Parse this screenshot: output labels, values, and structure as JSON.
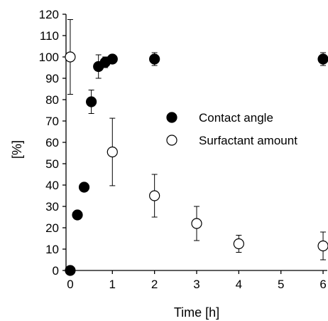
{
  "chart_data": {
    "type": "scatter",
    "title": "",
    "xlabel": "Time [h]",
    "ylabel": "[%]",
    "xlim": [
      -0.1,
      6.1
    ],
    "ylim": [
      0,
      120
    ],
    "xticks": [
      0,
      1,
      2,
      3,
      4,
      5,
      6
    ],
    "yticks": [
      0,
      10,
      20,
      30,
      40,
      50,
      60,
      70,
      80,
      90,
      100,
      110,
      120
    ],
    "grid": false,
    "legend": {
      "placement": "center-right"
    },
    "series": [
      {
        "name": "Contact angle",
        "marker": "filled-circle",
        "color": "#000000",
        "points": [
          {
            "x": 0,
            "y": 0,
            "err": 0
          },
          {
            "x": 0.17,
            "y": 26,
            "err": 0
          },
          {
            "x": 0.33,
            "y": 39,
            "err": 0
          },
          {
            "x": 0.5,
            "y": 79,
            "err": 5.5
          },
          {
            "x": 0.67,
            "y": 95.5,
            "err": 5.5
          },
          {
            "x": 0.83,
            "y": 97.5,
            "err": 2.5
          },
          {
            "x": 1,
            "y": 99,
            "err": 2
          },
          {
            "x": 2,
            "y": 99,
            "err": 3
          },
          {
            "x": 6,
            "y": 99,
            "err": 3
          }
        ]
      },
      {
        "name": "Surfactant amount",
        "marker": "open-circle",
        "color": "#000000",
        "points": [
          {
            "x": 0,
            "y": 100,
            "err": 17.5
          },
          {
            "x": 1,
            "y": 55.5,
            "err": 15.8
          },
          {
            "x": 2,
            "y": 35,
            "err": 10
          },
          {
            "x": 3,
            "y": 22,
            "err": 8
          },
          {
            "x": 4,
            "y": 12.5,
            "err": 4
          },
          {
            "x": 6,
            "y": 11.5,
            "err": 6.5
          }
        ]
      }
    ]
  }
}
